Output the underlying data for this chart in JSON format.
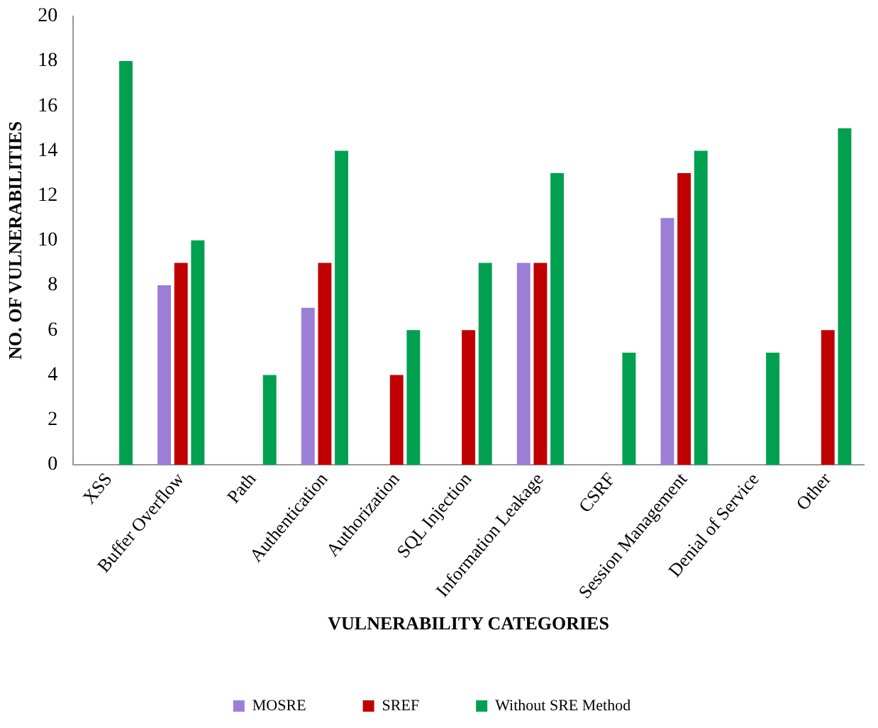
{
  "chart_data": {
    "type": "bar",
    "xlabel": "VULNERABILITY CATEGORIES",
    "ylabel": "NO. OF VULNERABILITIES",
    "categories": [
      "XSS",
      "Buffer Overflow",
      "Path",
      "Authentication",
      "Authorization",
      "SQL Injection",
      "Information Leakage",
      "CSRF",
      "Session Management",
      "Denial of Service",
      "Other"
    ],
    "series": [
      {
        "name": "MOSRE",
        "color": "#9b7fd6",
        "values": [
          0,
          8,
          0,
          7,
          0,
          0,
          9,
          0,
          11,
          0,
          0
        ]
      },
      {
        "name": "SREF",
        "color": "#c00000",
        "values": [
          0,
          9,
          0,
          9,
          4,
          6,
          9,
          0,
          13,
          0,
          6
        ]
      },
      {
        "name": "Without SRE Method",
        "color": "#00a050",
        "values": [
          18,
          10,
          4,
          14,
          6,
          9,
          13,
          5,
          14,
          5,
          15
        ]
      }
    ],
    "ylim": [
      0,
      20
    ],
    "yticks": [
      0,
      2,
      4,
      6,
      8,
      10,
      12,
      14,
      16,
      18,
      20
    ],
    "grid": false,
    "legend": "bottom"
  }
}
